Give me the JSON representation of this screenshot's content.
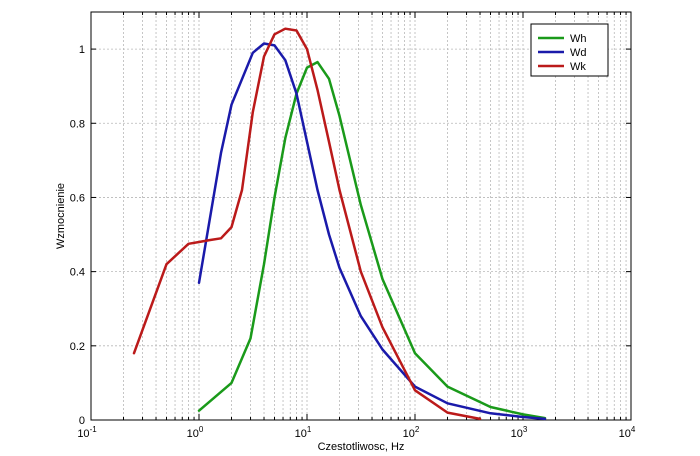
{
  "chart_data": {
    "type": "line",
    "xscale": "log",
    "xlim": [
      0.1,
      10000
    ],
    "ylim": [
      0,
      1.1
    ],
    "xlabel": "Czestotliwosc, Hz",
    "ylabel": "Wzmocnienie",
    "x_tick_labels": [
      {
        "value": 0.1,
        "base": "10",
        "exp": "-1"
      },
      {
        "value": 1,
        "base": "10",
        "exp": "0"
      },
      {
        "value": 10,
        "base": "10",
        "exp": "1"
      },
      {
        "value": 100,
        "base": "10",
        "exp": "2"
      },
      {
        "value": 1000,
        "base": "10",
        "exp": "3"
      },
      {
        "value": 10000,
        "base": "10",
        "exp": "4"
      }
    ],
    "y_ticks": [
      0,
      0.2,
      0.4,
      0.6,
      0.8,
      1
    ],
    "y_tick_labels": [
      "0",
      "0.2",
      "0.4",
      "0.6",
      "0.8",
      "1"
    ],
    "grid": true,
    "legend_position": "top-right",
    "series": [
      {
        "name": "Wh",
        "color": "#1a9a1a",
        "x": [
          1,
          2,
          3,
          4,
          5,
          6.3,
          8,
          10,
          12.5,
          16,
          20,
          31.5,
          50,
          100,
          200,
          500,
          1000,
          1600
        ],
        "y": [
          0.025,
          0.1,
          0.22,
          0.42,
          0.6,
          0.76,
          0.88,
          0.95,
          0.965,
          0.92,
          0.82,
          0.58,
          0.38,
          0.18,
          0.09,
          0.035,
          0.015,
          0.005
        ]
      },
      {
        "name": "Wd",
        "color": "#1a1aaa",
        "x": [
          1,
          1.6,
          2,
          3.15,
          4,
          5,
          6.3,
          8,
          10,
          12.5,
          16,
          20,
          31.5,
          50,
          100,
          200,
          500,
          1000,
          1600
        ],
        "y": [
          0.37,
          0.72,
          0.85,
          0.99,
          1.015,
          1.01,
          0.97,
          0.88,
          0.75,
          0.62,
          0.5,
          0.41,
          0.28,
          0.19,
          0.09,
          0.045,
          0.018,
          0.008,
          0.003
        ]
      },
      {
        "name": "Wk",
        "color": "#bb1a1a",
        "x": [
          0.25,
          0.5,
          0.8,
          1,
          1.25,
          1.6,
          2,
          2.5,
          3.15,
          4,
          5,
          6.3,
          8,
          10,
          12.5,
          16,
          20,
          31.5,
          50,
          100,
          200,
          400
        ],
        "y": [
          0.18,
          0.42,
          0.475,
          0.48,
          0.485,
          0.49,
          0.52,
          0.62,
          0.83,
          0.98,
          1.04,
          1.055,
          1.05,
          1.0,
          0.89,
          0.75,
          0.62,
          0.4,
          0.25,
          0.08,
          0.02,
          0.003
        ]
      }
    ]
  }
}
